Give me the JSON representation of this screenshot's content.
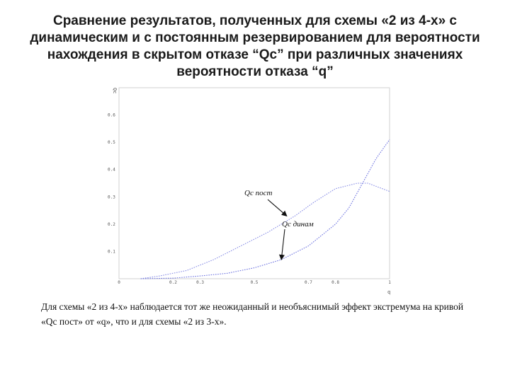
{
  "slide": {
    "title": "Сравнение результатов, полученных для схемы «2 из 4-х» с динамическим и с постоянным резервированием для вероятности нахождения в скрытом отказе “Qc” при различных значениях вероятности отказа “q”",
    "caption": "Для схемы «2 из 4-х» наблюдается тот же неожиданный и необъяснимый эффект экстремума на кривой «Qc пост» от «q», что и для схемы «2 из 3-х»."
  },
  "chart_data": {
    "type": "line",
    "title": "",
    "xlabel": "q",
    "ylabel": "Qc",
    "xlim": [
      0,
      1
    ],
    "ylim": [
      0,
      0.7
    ],
    "x_ticks": [
      {
        "value": 0,
        "label": "0"
      },
      {
        "value": 0.2,
        "label": "0.2"
      },
      {
        "value": 0.3,
        "label": "0.3"
      },
      {
        "value": 0.5,
        "label": "0.5"
      },
      {
        "value": 0.7,
        "label": "0.7"
      },
      {
        "value": 0.8,
        "label": "0.8"
      },
      {
        "value": 1,
        "label": "1"
      }
    ],
    "y_ticks": [
      {
        "value": 0.1,
        "label": "0.1"
      },
      {
        "value": 0.2,
        "label": "0.2"
      },
      {
        "value": 0.3,
        "label": "0.3"
      },
      {
        "value": 0.4,
        "label": "0.4"
      },
      {
        "value": 0.5,
        "label": "0.5"
      },
      {
        "value": 0.6,
        "label": "0.6"
      }
    ],
    "grid": false,
    "series": [
      {
        "name": "Qc пост",
        "color": "#8a8fe6",
        "x": [
          0.08,
          0.15,
          0.25,
          0.35,
          0.45,
          0.55,
          0.65,
          0.72,
          0.8,
          0.88,
          0.92,
          1.0
        ],
        "y": [
          0.0,
          0.01,
          0.03,
          0.07,
          0.12,
          0.17,
          0.23,
          0.28,
          0.33,
          0.35,
          0.35,
          0.32
        ]
      },
      {
        "name": "Qc динам",
        "color": "#6e74e0",
        "x": [
          0.08,
          0.2,
          0.3,
          0.4,
          0.5,
          0.6,
          0.7,
          0.8,
          0.85,
          0.9,
          0.95,
          1.0
        ],
        "y": [
          0.0,
          0.002,
          0.01,
          0.02,
          0.04,
          0.07,
          0.12,
          0.2,
          0.26,
          0.35,
          0.44,
          0.51
        ]
      }
    ],
    "annotations": [
      {
        "text": "Qc пост",
        "points_to_x": 0.62,
        "points_to_y": 0.23
      },
      {
        "text": "Qc динам",
        "points_to_x": 0.6,
        "points_to_y": 0.07
      }
    ]
  }
}
